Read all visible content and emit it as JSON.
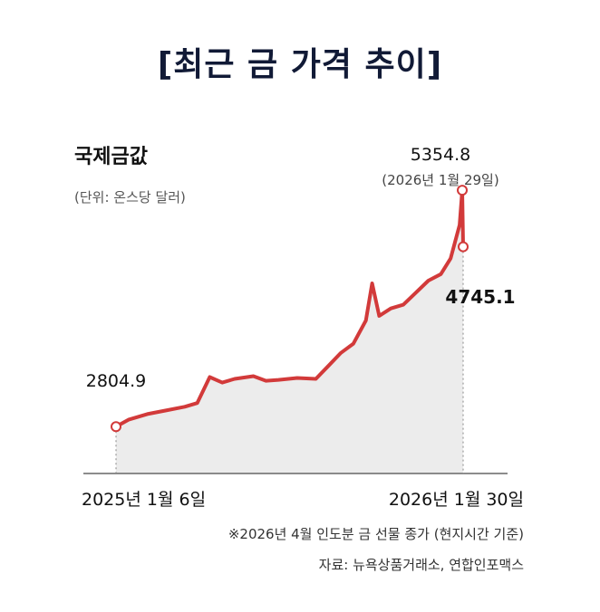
{
  "page_title": "[최근 금 가격 추이]",
  "chart_data": {
    "type": "area",
    "title": "국제금값",
    "unit_label": "(단위: 온스당 달러)",
    "x_start_label": "2025년 1월 6일",
    "x_end_label": "2026년 1월 30일",
    "x": [
      "2025-01-06",
      "2025-01-20",
      "2025-02-10",
      "2025-03-03",
      "2025-03-24",
      "2025-04-07",
      "2025-04-21",
      "2025-05-05",
      "2025-05-19",
      "2025-06-09",
      "2025-06-23",
      "2025-07-07",
      "2025-07-28",
      "2025-08-18",
      "2025-09-01",
      "2025-09-15",
      "2025-09-29",
      "2025-10-13",
      "2025-10-20",
      "2025-10-28",
      "2025-11-10",
      "2025-11-24",
      "2025-12-08",
      "2025-12-22",
      "2026-01-05",
      "2026-01-16",
      "2026-01-26",
      "2026-01-29",
      "2026-01-30"
    ],
    "values": [
      2804.9,
      2880,
      2940,
      2980,
      3020,
      3060,
      3340,
      3280,
      3320,
      3350,
      3300,
      3310,
      3330,
      3320,
      3460,
      3600,
      3700,
      3950,
      4350,
      4000,
      4080,
      4120,
      4250,
      4380,
      4450,
      4620,
      4980,
      5354.8,
      4745.1
    ],
    "ylim": [
      2300,
      5600
    ],
    "annotations": [
      {
        "label": "2804.9",
        "x": "2025-01-06",
        "y": 2804.9
      },
      {
        "label": "5354.8",
        "sublabel": "(2026년 1월 29일)",
        "x": "2026-01-29",
        "y": 5354.8
      },
      {
        "label": "4745.1",
        "x": "2026-01-30",
        "y": 4745.1
      }
    ],
    "line_color": "#d23a3a",
    "area_color": "#ececec"
  },
  "footnote": "※2026년 4월 인도분 금 선물 종가 (현지시간 기준)",
  "source": "자료: 뉴욕상품거래소, 연합인포맥스"
}
